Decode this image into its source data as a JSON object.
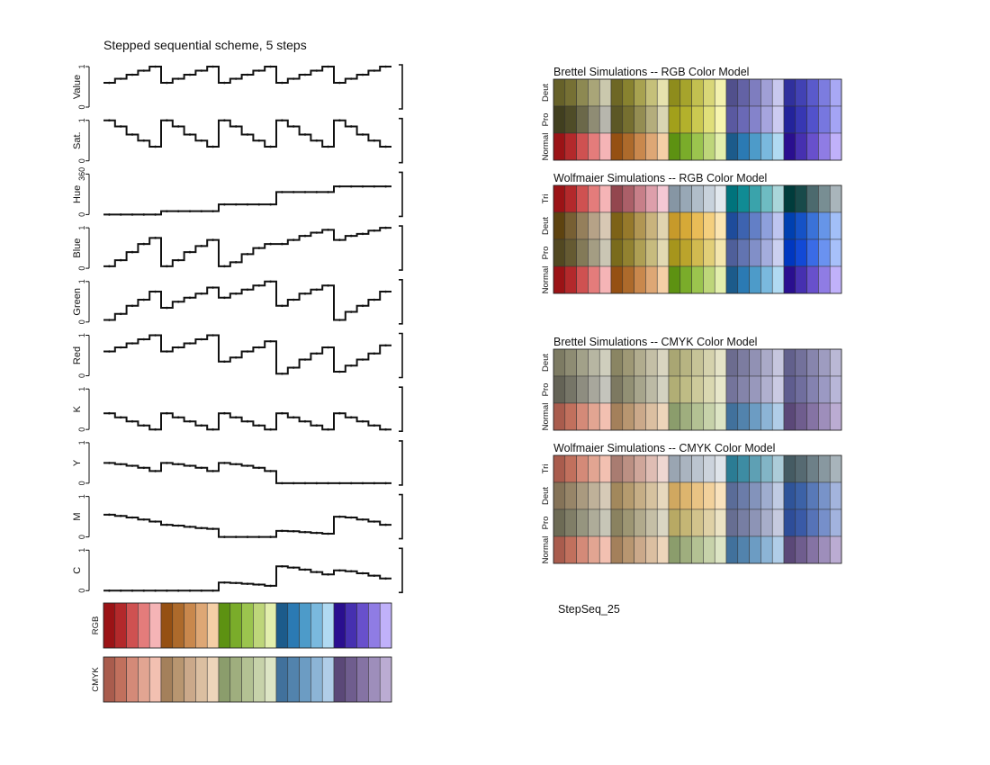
{
  "chart_data": {
    "type": "line",
    "title": "Stepped sequential scheme, 5 steps",
    "label": "StepSeq_25",
    "groups": 5,
    "steps": 5,
    "panels": [
      {
        "name": "Value",
        "ylabel": "Value",
        "ticks": [
          "1",
          "0"
        ],
        "ylim": [
          0,
          1
        ],
        "values": [
          0.6,
          0.7,
          0.8,
          0.9,
          1.0,
          0.6,
          0.7,
          0.8,
          0.9,
          1.0,
          0.6,
          0.7,
          0.8,
          0.9,
          1.0,
          0.6,
          0.7,
          0.8,
          0.9,
          1.0,
          0.6,
          0.7,
          0.8,
          0.9,
          1.0
        ]
      },
      {
        "name": "Sat.",
        "ylabel": "Sat.",
        "ticks": [
          "1",
          "0"
        ],
        "ylim": [
          0,
          1
        ],
        "values": [
          1.0,
          0.85,
          0.65,
          0.5,
          0.35,
          1.0,
          0.85,
          0.65,
          0.5,
          0.35,
          1.0,
          0.85,
          0.65,
          0.5,
          0.35,
          1.0,
          0.85,
          0.65,
          0.5,
          0.35,
          1.0,
          0.85,
          0.65,
          0.5,
          0.35
        ]
      },
      {
        "name": "Hue",
        "ylabel": "Hue",
        "ticks": [
          "360",
          "0"
        ],
        "ylim": [
          0,
          360
        ],
        "values": [
          0,
          0,
          0,
          0,
          0,
          30,
          30,
          30,
          30,
          30,
          90,
          90,
          90,
          90,
          90,
          200,
          200,
          200,
          200,
          200,
          250,
          250,
          250,
          250,
          250
        ]
      },
      {
        "name": "Blue",
        "ylabel": "Blue",
        "ticks": [
          "1",
          "0"
        ],
        "ylim": [
          0,
          1
        ],
        "values": [
          0.05,
          0.2,
          0.4,
          0.6,
          0.75,
          0.05,
          0.2,
          0.4,
          0.55,
          0.7,
          0.05,
          0.15,
          0.35,
          0.5,
          0.6,
          0.6,
          0.7,
          0.8,
          0.88,
          0.95,
          0.7,
          0.8,
          0.85,
          0.93,
          1.0
        ]
      },
      {
        "name": "Green",
        "ylabel": "Green",
        "ticks": [
          "1",
          "0"
        ],
        "ylim": [
          0,
          1
        ],
        "values": [
          0.05,
          0.2,
          0.4,
          0.55,
          0.75,
          0.35,
          0.5,
          0.6,
          0.7,
          0.85,
          0.6,
          0.7,
          0.8,
          0.9,
          1.0,
          0.4,
          0.55,
          0.7,
          0.8,
          0.9,
          0.05,
          0.25,
          0.4,
          0.55,
          0.75
        ]
      },
      {
        "name": "Red",
        "ylabel": "Red",
        "ticks": [
          "1",
          "0"
        ],
        "ylim": [
          0,
          1
        ],
        "values": [
          0.6,
          0.7,
          0.8,
          0.9,
          1.0,
          0.6,
          0.7,
          0.8,
          0.9,
          1.0,
          0.35,
          0.45,
          0.6,
          0.7,
          0.85,
          0.05,
          0.2,
          0.4,
          0.55,
          0.7,
          0.1,
          0.25,
          0.4,
          0.55,
          0.75
        ]
      },
      {
        "name": "K",
        "ylabel": "K",
        "ticks": [
          "1",
          "0"
        ],
        "ylim": [
          0,
          1
        ],
        "values": [
          0.4,
          0.3,
          0.2,
          0.1,
          0.0,
          0.4,
          0.3,
          0.2,
          0.1,
          0.0,
          0.4,
          0.3,
          0.2,
          0.1,
          0.0,
          0.4,
          0.3,
          0.2,
          0.1,
          0.0,
          0.4,
          0.3,
          0.2,
          0.1,
          0.0
        ]
      },
      {
        "name": "Y",
        "ylabel": "Y",
        "ticks": [
          "1",
          "0"
        ],
        "ylim": [
          0,
          1
        ],
        "values": [
          0.5,
          0.47,
          0.43,
          0.38,
          0.3,
          0.5,
          0.47,
          0.43,
          0.38,
          0.3,
          0.5,
          0.47,
          0.43,
          0.38,
          0.3,
          0,
          0,
          0,
          0,
          0,
          0,
          0,
          0,
          0,
          0
        ]
      },
      {
        "name": "M",
        "ylabel": "M",
        "ticks": [
          "1",
          "0"
        ],
        "ylim": [
          0,
          1
        ],
        "values": [
          0.55,
          0.52,
          0.48,
          0.43,
          0.38,
          0.3,
          0.28,
          0.25,
          0.22,
          0.2,
          0,
          0,
          0,
          0,
          0,
          0.15,
          0.14,
          0.12,
          0.1,
          0.08,
          0.5,
          0.48,
          0.43,
          0.38,
          0.3
        ]
      },
      {
        "name": "C",
        "ylabel": "C",
        "ticks": [
          "1",
          "0"
        ],
        "ylim": [
          0,
          1
        ],
        "values": [
          0,
          0,
          0,
          0,
          0,
          0,
          0,
          0,
          0,
          0,
          0.2,
          0.19,
          0.17,
          0.15,
          0.12,
          0.6,
          0.57,
          0.52,
          0.46,
          0.4,
          0.5,
          0.48,
          0.43,
          0.37,
          0.3
        ]
      }
    ],
    "swatches": {
      "RGB": [
        "#9b1316",
        "#b3292b",
        "#cf5151",
        "#e47c7b",
        "#f5b4b6",
        "#955013",
        "#ad6a2b",
        "#c9884d",
        "#dea775",
        "#f5cfa6",
        "#5d9212",
        "#7aac2a",
        "#9bc44e",
        "#bed67a",
        "#e3efad",
        "#1c5b8b",
        "#2b7ab3",
        "#4d9bc9",
        "#7ab9de",
        "#b0daf2",
        "#2a0f8f",
        "#4630b0",
        "#6850cc",
        "#8f7ce4",
        "#c0b1fa"
      ],
      "CMYK": [
        "#a95c4d",
        "#c1705d",
        "#d48a78",
        "#e2a592",
        "#f2c0b1",
        "#a4805b",
        "#b89670",
        "#cba98a",
        "#dbbfa1",
        "#edd5ba",
        "#8b9d6c",
        "#9fae7e",
        "#b3c193",
        "#c7d2aa",
        "#dde5c5",
        "#41719c",
        "#5283ad",
        "#6c9cc3",
        "#8cb4d6",
        "#b0cde8",
        "#5b4878",
        "#6f5d8e",
        "#8573a4",
        "#9e8ebb",
        "#bbacd2"
      ]
    },
    "simulations": [
      {
        "title": "Brettel Simulations -- RGB Color Model",
        "rows": [
          {
            "label": "Deut",
            "colors": [
              "#666129",
              "#767034",
              "#8d8952",
              "#a9a578",
              "#cac8ad",
              "#6e6725",
              "#88822f",
              "#a8a250",
              "#c5c07a",
              "#e6e2ae",
              "#8e8c1c",
              "#a6a42c",
              "#c2c050",
              "#d9d778",
              "#f3f1ae",
              "#51508c",
              "#6362a5",
              "#7e7dbf",
              "#a09fd6",
              "#c8c8ee",
              "#30309d",
              "#4242b4",
              "#5a5acb",
              "#7c7cdf",
              "#a8a8f4"
            ]
          },
          {
            "label": "Pro",
            "colors": [
              "#413f1f",
              "#4f4c28",
              "#6b6849",
              "#8f8c74",
              "#b7b6ad",
              "#5c5726",
              "#766f30",
              "#948d52",
              "#b4ad7c",
              "#d9d5b3",
              "#a2a01b",
              "#b3b12c",
              "#cbc951",
              "#e0df7a",
              "#f7f5af",
              "#5a59a0",
              "#6a69b6",
              "#8483cb",
              "#a6a5de",
              "#cccbf1",
              "#23239b",
              "#3737b3",
              "#5252cb",
              "#7777df",
              "#a4a4f4"
            ]
          },
          {
            "label": "Normal",
            "colors": [
              "#9b1316",
              "#b3292b",
              "#cf5151",
              "#e47c7b",
              "#f5b4b6",
              "#955013",
              "#ad6a2b",
              "#c9884d",
              "#dea775",
              "#f5cfa6",
              "#5d9212",
              "#7aac2a",
              "#9bc44e",
              "#bed67a",
              "#e3efad",
              "#1c5b8b",
              "#2b7ab3",
              "#4d9bc9",
              "#7ab9de",
              "#b0daf2",
              "#2a0f8f",
              "#4630b0",
              "#6850cc",
              "#8f7ce4",
              "#c0b1fa"
            ]
          }
        ]
      },
      {
        "title": "Wolfmaier Simulations -- RGB Color Model",
        "rows": [
          {
            "label": "Tri",
            "colors": [
              "#9b1316",
              "#b3292b",
              "#cf5151",
              "#e47c7b",
              "#f5b4b6",
              "#93464e",
              "#ab5f68",
              "#c77f89",
              "#dd9fab",
              "#f4c8d4",
              "#8696a4",
              "#98a8b6",
              "#b0bdc9",
              "#c8d2dc",
              "#e2e8ee",
              "#00737c",
              "#108b94",
              "#3aa3ab",
              "#6ebcc2",
              "#aad6da",
              "#003c3c",
              "#184a4a",
              "#4c6a6e",
              "#788e93",
              "#a9b5bb"
            ]
          },
          {
            "label": "Deut",
            "colors": [
              "#5e4310",
              "#775f33",
              "#957f5b",
              "#b6a287",
              "#d8c8b4",
              "#7d6217",
              "#96792b",
              "#b19653",
              "#c9b37d",
              "#e1d4b0",
              "#c79a2a",
              "#d6a937",
              "#e9bc57",
              "#f4cf7e",
              "#fbe5b2",
              "#1e4c9b",
              "#3d63b0",
              "#637fc6",
              "#8ea0dc",
              "#bec5f0",
              "#0040b0",
              "#1552c6",
              "#3a72d8",
              "#6695e8",
              "#a2bff7"
            ]
          },
          {
            "label": "Pro",
            "colors": [
              "#524821",
              "#655a32",
              "#837a58",
              "#a49d83",
              "#cac6b4",
              "#7a6b1c",
              "#928230",
              "#ae9f54",
              "#c7bb7e",
              "#e2d9b2",
              "#a6951c",
              "#bba42c",
              "#d1ba50",
              "#e2cf78",
              "#f4e6ad",
              "#4f5f9a",
              "#6274b1",
              "#818fc8",
              "#a4addd",
              "#cbd0f0",
              "#0037c0",
              "#1249d6",
              "#3a6be6",
              "#6a92f0",
              "#a7c0fa"
            ]
          },
          {
            "label": "Normal",
            "colors": [
              "#9b1316",
              "#b3292b",
              "#cf5151",
              "#e47c7b",
              "#f5b4b6",
              "#955013",
              "#ad6a2b",
              "#c9884d",
              "#dea775",
              "#f5cfa6",
              "#5d9212",
              "#7aac2a",
              "#9bc44e",
              "#bed67a",
              "#e3efad",
              "#1c5b8b",
              "#2b7ab3",
              "#4d9bc9",
              "#7ab9de",
              "#b0daf2",
              "#2a0f8f",
              "#4630b0",
              "#6850cc",
              "#8f7ce4",
              "#c0b1fa"
            ]
          }
        ]
      },
      {
        "title": "Brettel Simulations -- CMYK Color Model",
        "rows": [
          {
            "label": "Deut",
            "colors": [
              "#7d7b63",
              "#8e8c73",
              "#a2a189",
              "#b7b6a2",
              "#cfcebd",
              "#8a8563",
              "#9e9875",
              "#b1ac8e",
              "#c4bfa6",
              "#d9d5c0",
              "#a9a673",
              "#b7b482",
              "#c6c397",
              "#d5d2ad",
              "#e5e3c7",
              "#6c6c8f",
              "#7c7ca0",
              "#9191b4",
              "#aaaac8",
              "#c6c6de",
              "#62608c",
              "#73719b",
              "#8785ad",
              "#9e9cc0",
              "#bab8d5"
            ]
          },
          {
            "label": "Pro",
            "colors": [
              "#646356",
              "#767567",
              "#8e8d80",
              "#a8a79c",
              "#c4c4bc",
              "#7d7961",
              "#929074",
              "#a7a58c",
              "#bcbaa5",
              "#d3d2c1",
              "#b1ae75",
              "#bfbc85",
              "#cdca9b",
              "#dad8b1",
              "#e8e7ca",
              "#74749b",
              "#8484aa",
              "#9898bc",
              "#b0b0cf",
              "#cacae3",
              "#5f5d8f",
              "#706e9e",
              "#8482b0",
              "#9b99c3",
              "#b8b6d8"
            ]
          },
          {
            "label": "Normal",
            "colors": [
              "#a95c4d",
              "#c1705d",
              "#d48a78",
              "#e2a592",
              "#f2c0b1",
              "#a4805b",
              "#b89670",
              "#cba98a",
              "#dbbfa1",
              "#edd5ba",
              "#8b9d6c",
              "#9fae7e",
              "#b3c193",
              "#c7d2aa",
              "#dde5c5",
              "#41719c",
              "#5283ad",
              "#6c9cc3",
              "#8cb4d6",
              "#b0cde8",
              "#5b4878",
              "#6f5d8e",
              "#8573a4",
              "#9e8ebb",
              "#bbacd2"
            ]
          }
        ]
      },
      {
        "title": "Wolfmaier Simulations -- CMYK Color Model",
        "rows": [
          {
            "label": "Tri",
            "colors": [
              "#a95c4d",
              "#c1705d",
              "#d48a78",
              "#e2a592",
              "#f2c0b1",
              "#a97c71",
              "#bc9083",
              "#cfa69a",
              "#dfbdb4",
              "#efd7d1",
              "#9aa5b2",
              "#aab4c0",
              "#bbc4cf",
              "#ccd3dc",
              "#dfe4ea",
              "#2b7c94",
              "#3d8ca3",
              "#5ea0b4",
              "#82b5c6",
              "#acccd9",
              "#455b63",
              "#566a72",
              "#6d8088",
              "#8898a0",
              "#a8b4bb"
            ]
          },
          {
            "label": "Deut",
            "colors": [
              "#857358",
              "#978568",
              "#aa9a7f",
              "#bfb199",
              "#d6cab7",
              "#a2885c",
              "#b59b6e",
              "#c6ae86",
              "#d6c29f",
              "#e7d8bd",
              "#d0a860",
              "#ddb56e",
              "#e9c384",
              "#f2d19c",
              "#f9e2bd",
              "#5a6c98",
              "#6b7ca9",
              "#8393bb",
              "#9fadcf",
              "#c0cbe3",
              "#2f5499",
              "#3c62a7",
              "#5879b8",
              "#7893c9",
              "#a3b4dd"
            ]
          },
          {
            "label": "Pro",
            "colors": [
              "#6d6b55",
              "#807e67",
              "#96957f",
              "#aeac99",
              "#c7c6b7",
              "#8a8260",
              "#9d9673",
              "#b1aa8c",
              "#c5bfa6",
              "#dad6c3",
              "#b8a964",
              "#c5b675",
              "#d2c38c",
              "#dfd1a6",
              "#ece3c4",
              "#676e92",
              "#777ea3",
              "#8d94b6",
              "#a8aeca",
              "#c6cadf",
              "#2e4d99",
              "#3a5aa7",
              "#5673b8",
              "#768fca",
              "#a2b3de"
            ]
          },
          {
            "label": "Normal",
            "colors": [
              "#a95c4d",
              "#c1705d",
              "#d48a78",
              "#e2a592",
              "#f2c0b1",
              "#a4805b",
              "#b89670",
              "#cba98a",
              "#dbbfa1",
              "#edd5ba",
              "#8b9d6c",
              "#9fae7e",
              "#b3c193",
              "#c7d2aa",
              "#dde5c5",
              "#41719c",
              "#5283ad",
              "#6c9cc3",
              "#8cb4d6",
              "#b0cde8",
              "#5b4878",
              "#6f5d8e",
              "#8573a4",
              "#9e8ebb",
              "#bbacd2"
            ]
          }
        ]
      }
    ]
  }
}
